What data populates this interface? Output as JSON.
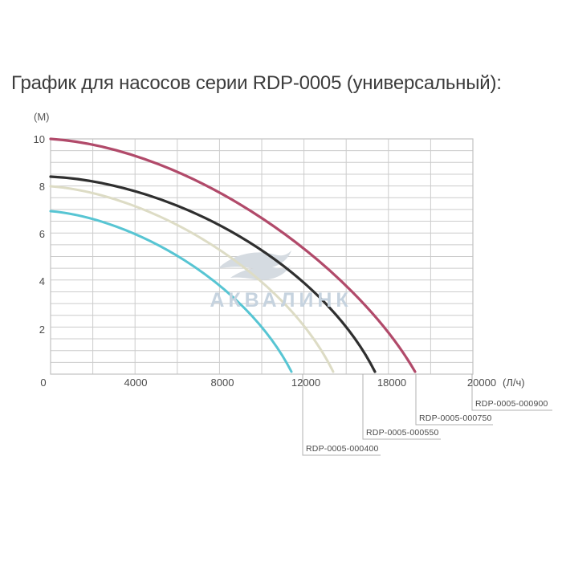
{
  "title": "График для насосов серии RDP-0005 (универсальный):",
  "watermark": {
    "brand": "АКВАЛИНК",
    "color": "#c6d3df"
  },
  "chart_data": {
    "type": "line",
    "title": "График для насосов серии RDP-0005 (универсальный)",
    "xlabel": "(Л/ч)",
    "ylabel": "(М)",
    "xlim": [
      0,
      20000
    ],
    "ylim": [
      0,
      10
    ],
    "grid": {
      "on": true,
      "x_minor_step": 2000,
      "y_minor_step": 0.5
    },
    "x_ticks": [
      "0",
      "4000",
      "8000",
      "12000",
      "18000",
      "20000"
    ],
    "x_unit": "(Л/ч)",
    "y_ticks": [
      "10",
      "8",
      "6",
      "4",
      "2"
    ],
    "y_unit": "(М)",
    "series": [
      {
        "name": "RDP-0005-000900",
        "color": "#b14a6a",
        "points": [
          [
            0,
            10
          ],
          [
            4000,
            9.4
          ],
          [
            8000,
            7.7
          ],
          [
            12000,
            5.4
          ],
          [
            14600,
            3.9
          ],
          [
            17200,
            0
          ]
        ]
      },
      {
        "name": "RDP-0005-000750",
        "color": "#2f2f2f",
        "points": [
          [
            0,
            8.5
          ],
          [
            4000,
            8.0
          ],
          [
            8000,
            6.4
          ],
          [
            12000,
            4.1
          ],
          [
            15400,
            0
          ]
        ]
      },
      {
        "name": "RDP-0005-000550",
        "color": "#dddcc5",
        "points": [
          [
            0,
            8.0
          ],
          [
            4000,
            7.0
          ],
          [
            8000,
            5.1
          ],
          [
            11000,
            2.9
          ],
          [
            13400,
            0
          ]
        ]
      },
      {
        "name": "RDP-0005-000400",
        "color": "#57c5d3",
        "points": [
          [
            0,
            7.0
          ],
          [
            4000,
            5.6
          ],
          [
            8000,
            4.0
          ],
          [
            10000,
            2.6
          ],
          [
            11400,
            0
          ]
        ]
      }
    ],
    "callouts": [
      "RDP-0005-000400",
      "RDP-0005-000550",
      "RDP-0005-000750",
      "RDP-0005-000900"
    ],
    "legend_position": "callout-bottom-right"
  }
}
